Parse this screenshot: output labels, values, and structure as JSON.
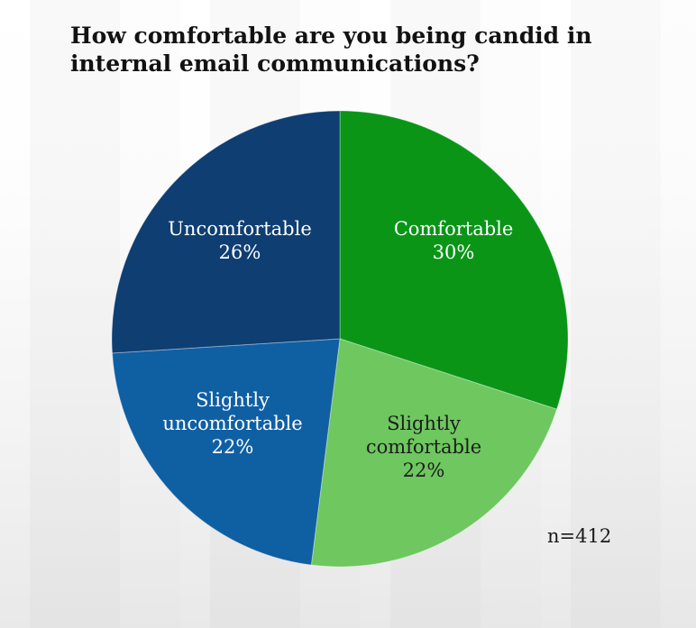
{
  "chart_data": {
    "type": "pie",
    "title": "How comfortable are you being candid in internal email communications?",
    "start_angle_deg": 0,
    "direction": "clockwise",
    "legend_position": "labels-inside-slices",
    "annotation": "n=412",
    "slices": [
      {
        "label": "Comfortable",
        "value": 30,
        "display_value": "30%",
        "color": "#0a9517",
        "text_color": "#ffffff"
      },
      {
        "label": "Slightly comfortable",
        "value": 22,
        "display_value": "22%",
        "color": "#6ec75f",
        "text_color": "#1c1c1c"
      },
      {
        "label": "Slightly uncomfortable",
        "value": 22,
        "display_value": "22%",
        "color": "#0f5fa3",
        "text_color": "#ffffff"
      },
      {
        "label": "Uncomfortable",
        "value": 26,
        "display_value": "26%",
        "color": "#0e3e72",
        "text_color": "#ffffff"
      }
    ]
  }
}
